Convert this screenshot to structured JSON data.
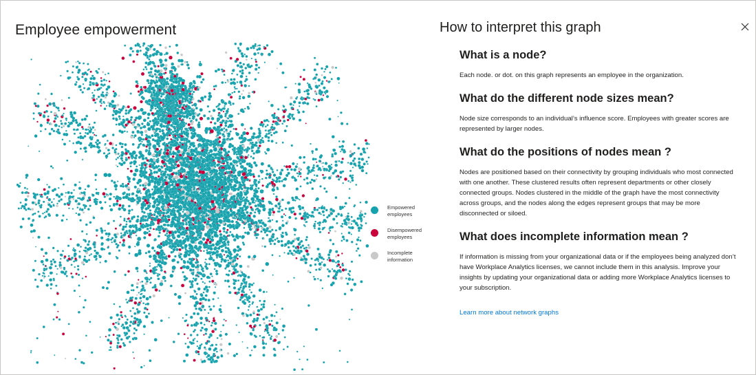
{
  "left": {
    "title": "Employee empowerment",
    "legend": [
      {
        "label": "Empowered employees",
        "color": "#16a2ad",
        "icon": "teal-dot-icon"
      },
      {
        "label": "Disempowered employees",
        "color": "#c8003c",
        "icon": "crimson-dot-icon"
      },
      {
        "label": "Incomplete information",
        "color": "#c9c9c9",
        "icon": "gray-dot-icon"
      }
    ]
  },
  "panel": {
    "title": "How to interpret this graph",
    "close_icon": "close-icon",
    "sections": [
      {
        "heading": "What is a node?",
        "body": "Each node. or dot. on this graph represents an employee in the organization."
      },
      {
        "heading": "What do the different node sizes mean?",
        "body": "Node size corresponds to an individual’s influence score. Employees with greater scores are represented by larger nodes."
      },
      {
        "heading": "What do the positions of nodes mean ?",
        "body": "Nodes are positioned based on their connectivity by grouping individuals who most connected with one another. These clustered results often represent departments or other closely connected groups. Nodes clustered in the middle of the graph have the most connectivity across groups, and the nodes along the edges represent groups that may be more disconnected or siloed."
      },
      {
        "heading": "What does incomplete information mean ?",
        "body": "If information is missing from your organizational data or if the employees being analyzed don’t have Workplace Analytics licenses, we cannot include them in this analysis. Improve your insights by updating your organizational data or adding more Workplace Analytics licenses to your subscription."
      }
    ],
    "link_label": "Learn more about network graphs"
  }
}
